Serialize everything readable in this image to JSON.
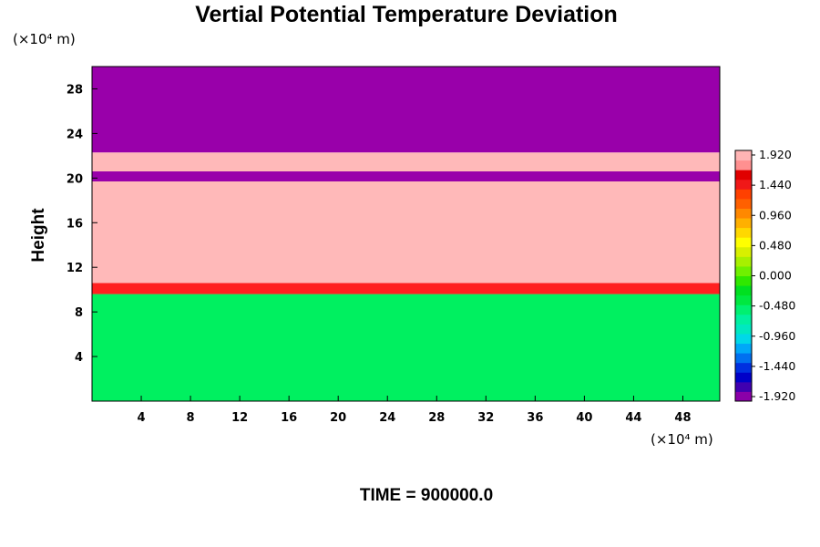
{
  "chart_data": {
    "type": "heatmap",
    "title": "Vertial Potential Temperature Deviation",
    "ylabel": "Height",
    "x_unit": "(×10⁴ m)",
    "y_unit": "(×10⁴ m)",
    "x_ticks": [
      4,
      8,
      12,
      16,
      20,
      24,
      28,
      32,
      36,
      40,
      44,
      48
    ],
    "y_ticks": [
      4,
      8,
      12,
      16,
      20,
      24,
      28
    ],
    "xlim": [
      0,
      51
    ],
    "ylim": [
      0,
      30
    ],
    "colorbar": {
      "min": -1.92,
      "max": 1.92,
      "labels": [
        "1.920",
        "1.440",
        "0.960",
        "0.480",
        "0.000",
        "-0.480",
        "-0.960",
        "-1.440",
        "-1.920"
      ],
      "colors": [
        "#8a00a8",
        "#4000b0",
        "#0000c8",
        "#0030e0",
        "#0070f0",
        "#00a8f8",
        "#00d8e8",
        "#00e8c0",
        "#00f0a0",
        "#00f070",
        "#00e840",
        "#00e020",
        "#30e800",
        "#70f000",
        "#a8f000",
        "#d8f000",
        "#ffff00",
        "#ffd800",
        "#ffb000",
        "#ff8800",
        "#ff6000",
        "#ff4000",
        "#f01818",
        "#e00000",
        "#ff9090",
        "#ffb4b4"
      ]
    },
    "layers": [
      {
        "y0": 0.0,
        "y1": 9.6,
        "value": -0.16,
        "color": "#00f060"
      },
      {
        "y0": 9.6,
        "y1": 10.6,
        "value": 1.5,
        "color": "#ff2020"
      },
      {
        "y0": 10.6,
        "y1": 19.7,
        "value": 1.92,
        "color": "#ffb9b9"
      },
      {
        "y0": 19.7,
        "y1": 20.6,
        "value": -1.92,
        "color": "#9900aa"
      },
      {
        "y0": 20.6,
        "y1": 22.3,
        "value": 1.92,
        "color": "#ffb9b9"
      },
      {
        "y0": 22.3,
        "y1": 30.0,
        "value": -1.92,
        "color": "#9900aa"
      }
    ],
    "time_label": "TIME =",
    "time_value": "900000.0"
  }
}
